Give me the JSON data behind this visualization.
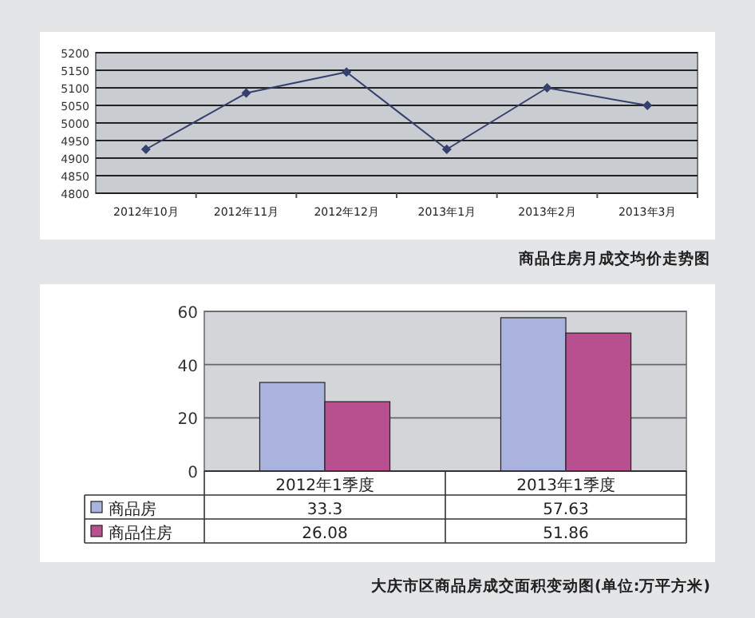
{
  "chart_data": [
    {
      "type": "line",
      "title": "商品住房月成交均价走势图",
      "categories": [
        "2012年10月",
        "2012年11月",
        "2012年12月",
        "2013年1月",
        "2013年2月",
        "2013年3月"
      ],
      "values": [
        4925,
        5085,
        5145,
        4925,
        5100,
        5050
      ],
      "color": "#34406e",
      "ylim": [
        4800,
        5200
      ],
      "yticks": [
        4800,
        4850,
        4900,
        4950,
        5000,
        5050,
        5100,
        5150,
        5200
      ],
      "grid": "y",
      "marker": "diamond"
    },
    {
      "type": "bar",
      "title": "大庆市区商品房成交面积变动图(单位:万平方米)",
      "categories": [
        "2012年1季度",
        "2013年1季度"
      ],
      "series": [
        {
          "name": "商品房",
          "color": "#aab2de",
          "values": [
            33.3,
            57.63
          ]
        },
        {
          "name": "商品住房",
          "color": "#b84f8e",
          "values": [
            26.08,
            51.86
          ]
        }
      ],
      "ylim": [
        0,
        60
      ],
      "yticks": [
        0,
        20,
        40,
        60
      ],
      "grid": "y",
      "legend": "bottom left",
      "data_labels": true
    }
  ]
}
